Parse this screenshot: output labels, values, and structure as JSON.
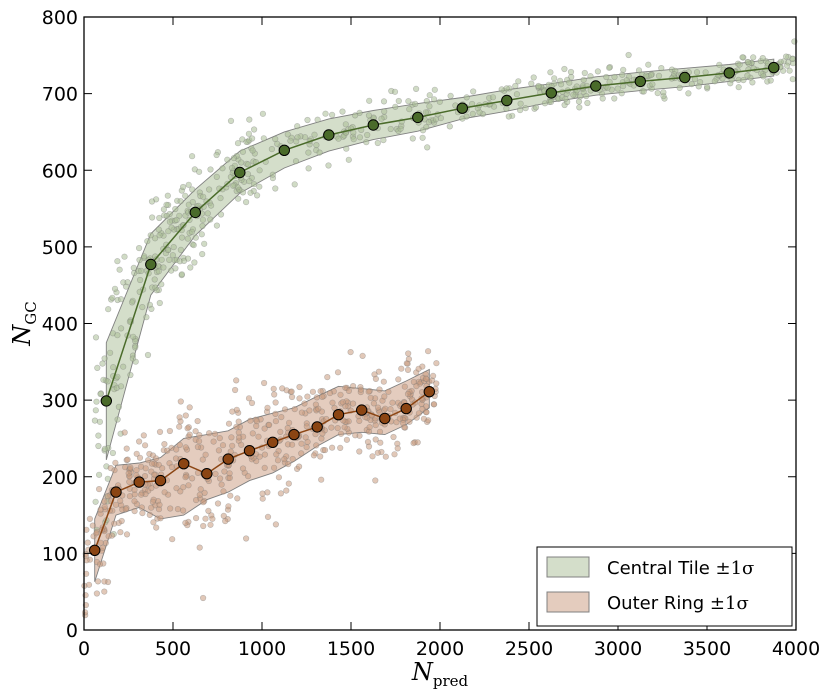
{
  "chart_data": {
    "type": "scatter",
    "title": "",
    "xlabel": "N",
    "xlabel_sub": "pred",
    "ylabel": "N",
    "ylabel_sub": "GC",
    "xlim": [
      0,
      4000
    ],
    "ylim": [
      0,
      800
    ],
    "x_ticks": [
      0,
      500,
      1000,
      1500,
      2000,
      2500,
      3000,
      3500,
      4000
    ],
    "y_ticks": [
      0,
      100,
      200,
      300,
      400,
      500,
      600,
      700,
      800
    ],
    "grid": false,
    "legend_position": "bottom-right",
    "series": [
      {
        "name": "Central Tile ±1σ",
        "legend_prefix": "Central Tile ",
        "legend_suffix": "±1σ",
        "color": "#4a6b2a",
        "fill_color": "#a9bd96",
        "x": [
          125,
          375,
          625,
          875,
          1125,
          1375,
          1625,
          1875,
          2125,
          2375,
          2625,
          2875,
          3125,
          3375,
          3625,
          3875
        ],
        "mean": [
          299,
          477,
          545,
          597,
          626,
          646,
          659,
          669,
          681,
          691,
          701,
          710,
          716,
          721,
          727,
          734
        ],
        "upper": [
          375,
          517,
          575,
          625,
          650,
          667,
          678,
          687,
          695,
          705,
          713,
          722,
          728,
          733,
          738,
          745
        ],
        "lower": [
          222,
          437,
          515,
          570,
          603,
          625,
          640,
          651,
          667,
          677,
          689,
          698,
          704,
          709,
          716,
          723
        ],
        "scatter_x_range": [
          60,
          4000
        ],
        "scatter_count": 620
      },
      {
        "name": "Outer Ring ±1σ",
        "legend_prefix": "Outer Ring ",
        "legend_suffix": "±1σ",
        "color": "#8b4513",
        "fill_color": "#c99a7d",
        "x": [
          60,
          180,
          310,
          430,
          560,
          690,
          810,
          930,
          1060,
          1180,
          1310,
          1430,
          1560,
          1690,
          1810,
          1940
        ],
        "mean": [
          104,
          180,
          193,
          195,
          217,
          204,
          223,
          234,
          245,
          255,
          265,
          281,
          287,
          276,
          289,
          311
        ],
        "upper": [
          145,
          215,
          218,
          225,
          250,
          255,
          260,
          275,
          283,
          290,
          305,
          318,
          315,
          312,
          325,
          340
        ],
        "lower": [
          63,
          150,
          160,
          145,
          150,
          170,
          180,
          195,
          205,
          220,
          240,
          255,
          258,
          255,
          268,
          290
        ],
        "scatter_x_range": [
          0,
          1980
        ],
        "scatter_count": 560
      }
    ]
  }
}
